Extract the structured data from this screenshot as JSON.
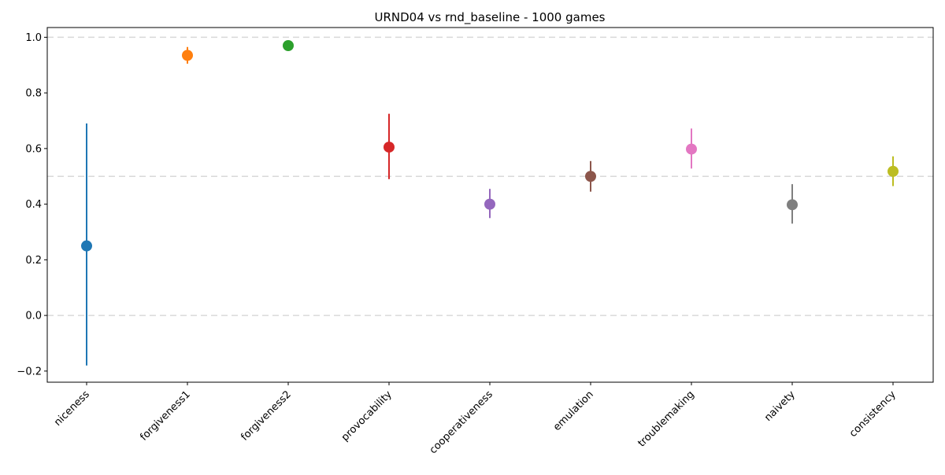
{
  "chart_data": {
    "type": "scatter",
    "title": "URND04 vs rnd_baseline - 1000 games",
    "xlabel": "",
    "ylabel": "",
    "categories": [
      "niceness",
      "forgiveness1",
      "forgiveness2",
      "provocability",
      "cooperativeness",
      "emulation",
      "troublemaking",
      "naivety",
      "consistency"
    ],
    "points": [
      {
        "category": "niceness",
        "value": 0.25,
        "err_low": -0.18,
        "err_high": 0.69,
        "color": "#1f77b4"
      },
      {
        "category": "forgiveness1",
        "value": 0.935,
        "err_low": 0.905,
        "err_high": 0.965,
        "color": "#ff7f0e"
      },
      {
        "category": "forgiveness2",
        "value": 0.97,
        "err_low": 0.96,
        "err_high": 0.98,
        "color": "#2ca02c"
      },
      {
        "category": "provocability",
        "value": 0.605,
        "err_low": 0.49,
        "err_high": 0.725,
        "color": "#d62728"
      },
      {
        "category": "cooperativeness",
        "value": 0.4,
        "err_low": 0.35,
        "err_high": 0.455,
        "color": "#9467bd"
      },
      {
        "category": "emulation",
        "value": 0.5,
        "err_low": 0.445,
        "err_high": 0.555,
        "color": "#8c564b"
      },
      {
        "category": "troublemaking",
        "value": 0.598,
        "err_low": 0.528,
        "err_high": 0.672,
        "color": "#e377c2"
      },
      {
        "category": "naivety",
        "value": 0.398,
        "err_low": 0.33,
        "err_high": 0.472,
        "color": "#7f7f7f"
      },
      {
        "category": "consistency",
        "value": 0.518,
        "err_low": 0.465,
        "err_high": 0.572,
        "color": "#bcbd22"
      }
    ],
    "ylim": [
      -0.24,
      1.035
    ],
    "yticks": [
      -0.2,
      0.0,
      0.2,
      0.4,
      0.6,
      0.8,
      1.0
    ],
    "ytick_labels": [
      "−0.2",
      "0.0",
      "0.2",
      "0.4",
      "0.6",
      "0.8",
      "1.0"
    ],
    "reference_lines": [
      0.0,
      0.5,
      1.0
    ],
    "grid": false,
    "legend": "none"
  }
}
